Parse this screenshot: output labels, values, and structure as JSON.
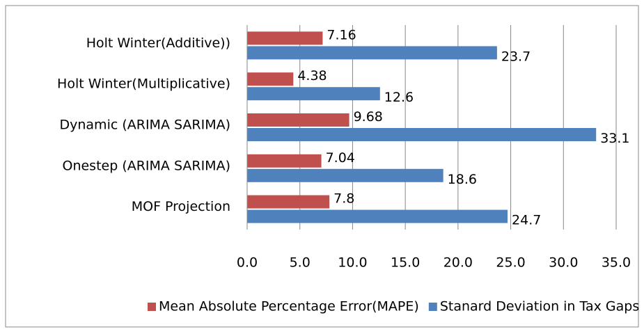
{
  "chart_data": {
    "type": "hbar",
    "categories": [
      "Holt Winter(Additive))",
      "Holt Winter(Multiplicative)",
      "Dynamic (ARIMA SARIMA)",
      "Onestep (ARIMA SARIMA)",
      "MOF Projection"
    ],
    "series": [
      {
        "name": "Mean Absolute Percentage Error(MAPE)",
        "color": "#c0504d",
        "values": [
          7.16,
          4.38,
          9.68,
          7.04,
          7.8
        ]
      },
      {
        "name": "Stanard Deviation in Tax Gaps",
        "color": "#4f81bd",
        "values": [
          23.7,
          12.6,
          33.1,
          18.6,
          24.7
        ]
      }
    ],
    "xlim": [
      0,
      35
    ],
    "xticks": [
      {
        "value": 0,
        "label": "0.0"
      },
      {
        "value": 5,
        "label": "5.0"
      },
      {
        "value": 10,
        "label": "10.0"
      },
      {
        "value": 15,
        "label": "15.0"
      },
      {
        "value": 20,
        "label": "20.0"
      },
      {
        "value": 25,
        "label": "25.0"
      },
      {
        "value": 30,
        "label": "30.0"
      },
      {
        "value": 35,
        "label": "35.0"
      }
    ],
    "grid": true,
    "legend": "bottom"
  }
}
